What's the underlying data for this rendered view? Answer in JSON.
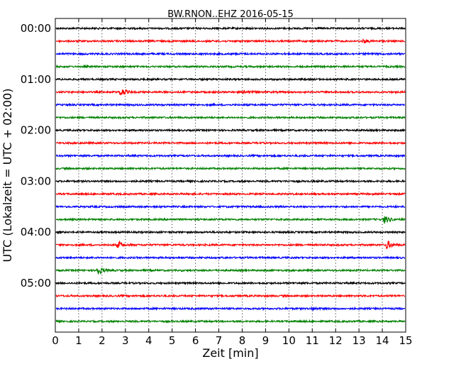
{
  "chart_data": {
    "type": "line",
    "title": "BW.RNON..EHZ 2016-05-15",
    "xlabel": "Zeit  [min]",
    "ylabel": "UTC (Lokalzeit = UTC + 02:00)",
    "xlim": [
      0,
      15
    ],
    "x_ticks": [
      "0",
      "1",
      "2",
      "3",
      "4",
      "5",
      "6",
      "7",
      "8",
      "9",
      "10",
      "11",
      "12",
      "13",
      "14",
      "15"
    ],
    "y_ticks": [
      "00:00",
      "01:00",
      "02:00",
      "03:00",
      "04:00",
      "05:00"
    ],
    "grid": "vertical dotted",
    "trace_interval_minutes": 15,
    "color_cycle": [
      "#000000",
      "#ff0000",
      "#0000ff",
      "#008000"
    ],
    "traces": [
      {
        "start": "00:00",
        "events": []
      },
      {
        "start": "00:15",
        "events": [
          {
            "minute": 13.2,
            "amplitude": 0.3
          }
        ]
      },
      {
        "start": "00:30",
        "events": []
      },
      {
        "start": "00:45",
        "events": []
      },
      {
        "start": "01:00",
        "events": []
      },
      {
        "start": "01:15",
        "events": [
          {
            "minute": 2.8,
            "amplitude": 0.7
          },
          {
            "minute": 8.1,
            "amplitude": 0.25
          }
        ]
      },
      {
        "start": "01:30",
        "events": []
      },
      {
        "start": "01:45",
        "events": []
      },
      {
        "start": "02:00",
        "events": []
      },
      {
        "start": "02:15",
        "events": []
      },
      {
        "start": "02:30",
        "events": []
      },
      {
        "start": "02:45",
        "events": []
      },
      {
        "start": "03:00",
        "events": []
      },
      {
        "start": "03:15",
        "events": []
      },
      {
        "start": "03:30",
        "events": []
      },
      {
        "start": "03:45",
        "events": [
          {
            "minute": 14.1,
            "amplitude": 0.7
          }
        ]
      },
      {
        "start": "04:00",
        "events": []
      },
      {
        "start": "04:15",
        "events": [
          {
            "minute": 2.7,
            "amplitude": 0.6
          },
          {
            "minute": 14.2,
            "amplitude": 0.8
          }
        ]
      },
      {
        "start": "04:30",
        "events": []
      },
      {
        "start": "04:45",
        "events": [
          {
            "minute": 1.8,
            "amplitude": 0.8
          }
        ]
      },
      {
        "start": "05:00",
        "events": []
      },
      {
        "start": "05:15",
        "events": []
      },
      {
        "start": "05:30",
        "events": [
          {
            "minute": 11.0,
            "amplitude": 0.2
          }
        ]
      },
      {
        "start": "05:45",
        "events": []
      }
    ]
  }
}
